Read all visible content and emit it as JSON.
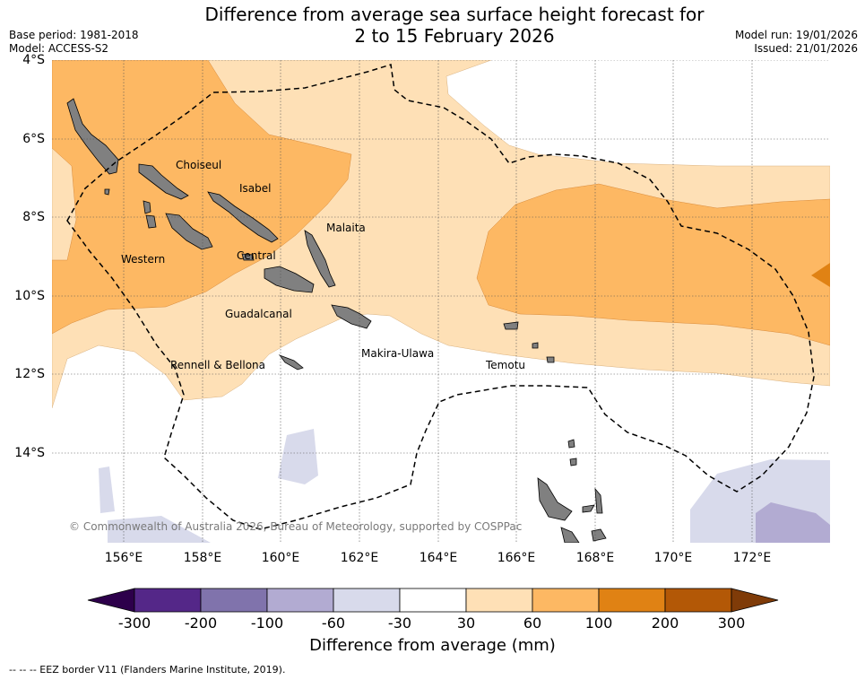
{
  "title": {
    "line1": "Difference from average sea surface height forecast for",
    "line2": "2 to 15 February 2026"
  },
  "meta_left": {
    "base_period": "Base period: 1981-2018",
    "model": "Model: ACCESS-S2"
  },
  "meta_right": {
    "model_run": "Model run: 19/01/2026",
    "issued": "Issued: 21/01/2026"
  },
  "axes": {
    "lat_labels": [
      "4°S",
      "6°S",
      "8°S",
      "10°S",
      "12°S",
      "14°S"
    ],
    "lon_labels": [
      "156°E",
      "158°E",
      "160°E",
      "162°E",
      "164°E",
      "166°E",
      "168°E",
      "170°E",
      "172°E"
    ],
    "lat_values": [
      -4,
      -6,
      -8,
      -10,
      -12,
      -14
    ],
    "lon_values": [
      156,
      158,
      160,
      162,
      164,
      166,
      168,
      170,
      172
    ]
  },
  "regions": {
    "choiseul": "Choiseul",
    "isabel": "Isabel",
    "malaita": "Malaita",
    "western": "Western",
    "central": "Central",
    "guadalcanal": "Guadalcanal",
    "makira": "Makira-Ulawa",
    "rennell": "Rennell & Bellona",
    "temotu": "Temotu"
  },
  "copyright": "© Commonwealth of Australia 2026, Bureau of Meteorology, supported by COSPPac",
  "colorbar": {
    "label": "Difference from average (mm)",
    "ticks": [
      "-300",
      "-200",
      "-100",
      "-60",
      "-30",
      "30",
      "60",
      "100",
      "200",
      "300"
    ],
    "colors": {
      "lt_minus300": "#2d004b",
      "m300_m200": "#542788",
      "m200_m100": "#8073ac",
      "m100_m60": "#b2abd2",
      "m60_m30": "#d8daeb",
      "m30_30": "#ffffff",
      "30_60": "#fee0b6",
      "60_100": "#fdb863",
      "100_200": "#e08214",
      "200_300": "#b35806",
      "gt_300": "#7f3b08"
    }
  },
  "footnote": "--  --  -- EEZ border V11 (Flanders Marine Institute, 2019).",
  "colors": {
    "land": "#808080",
    "eez_line": "#000000"
  }
}
